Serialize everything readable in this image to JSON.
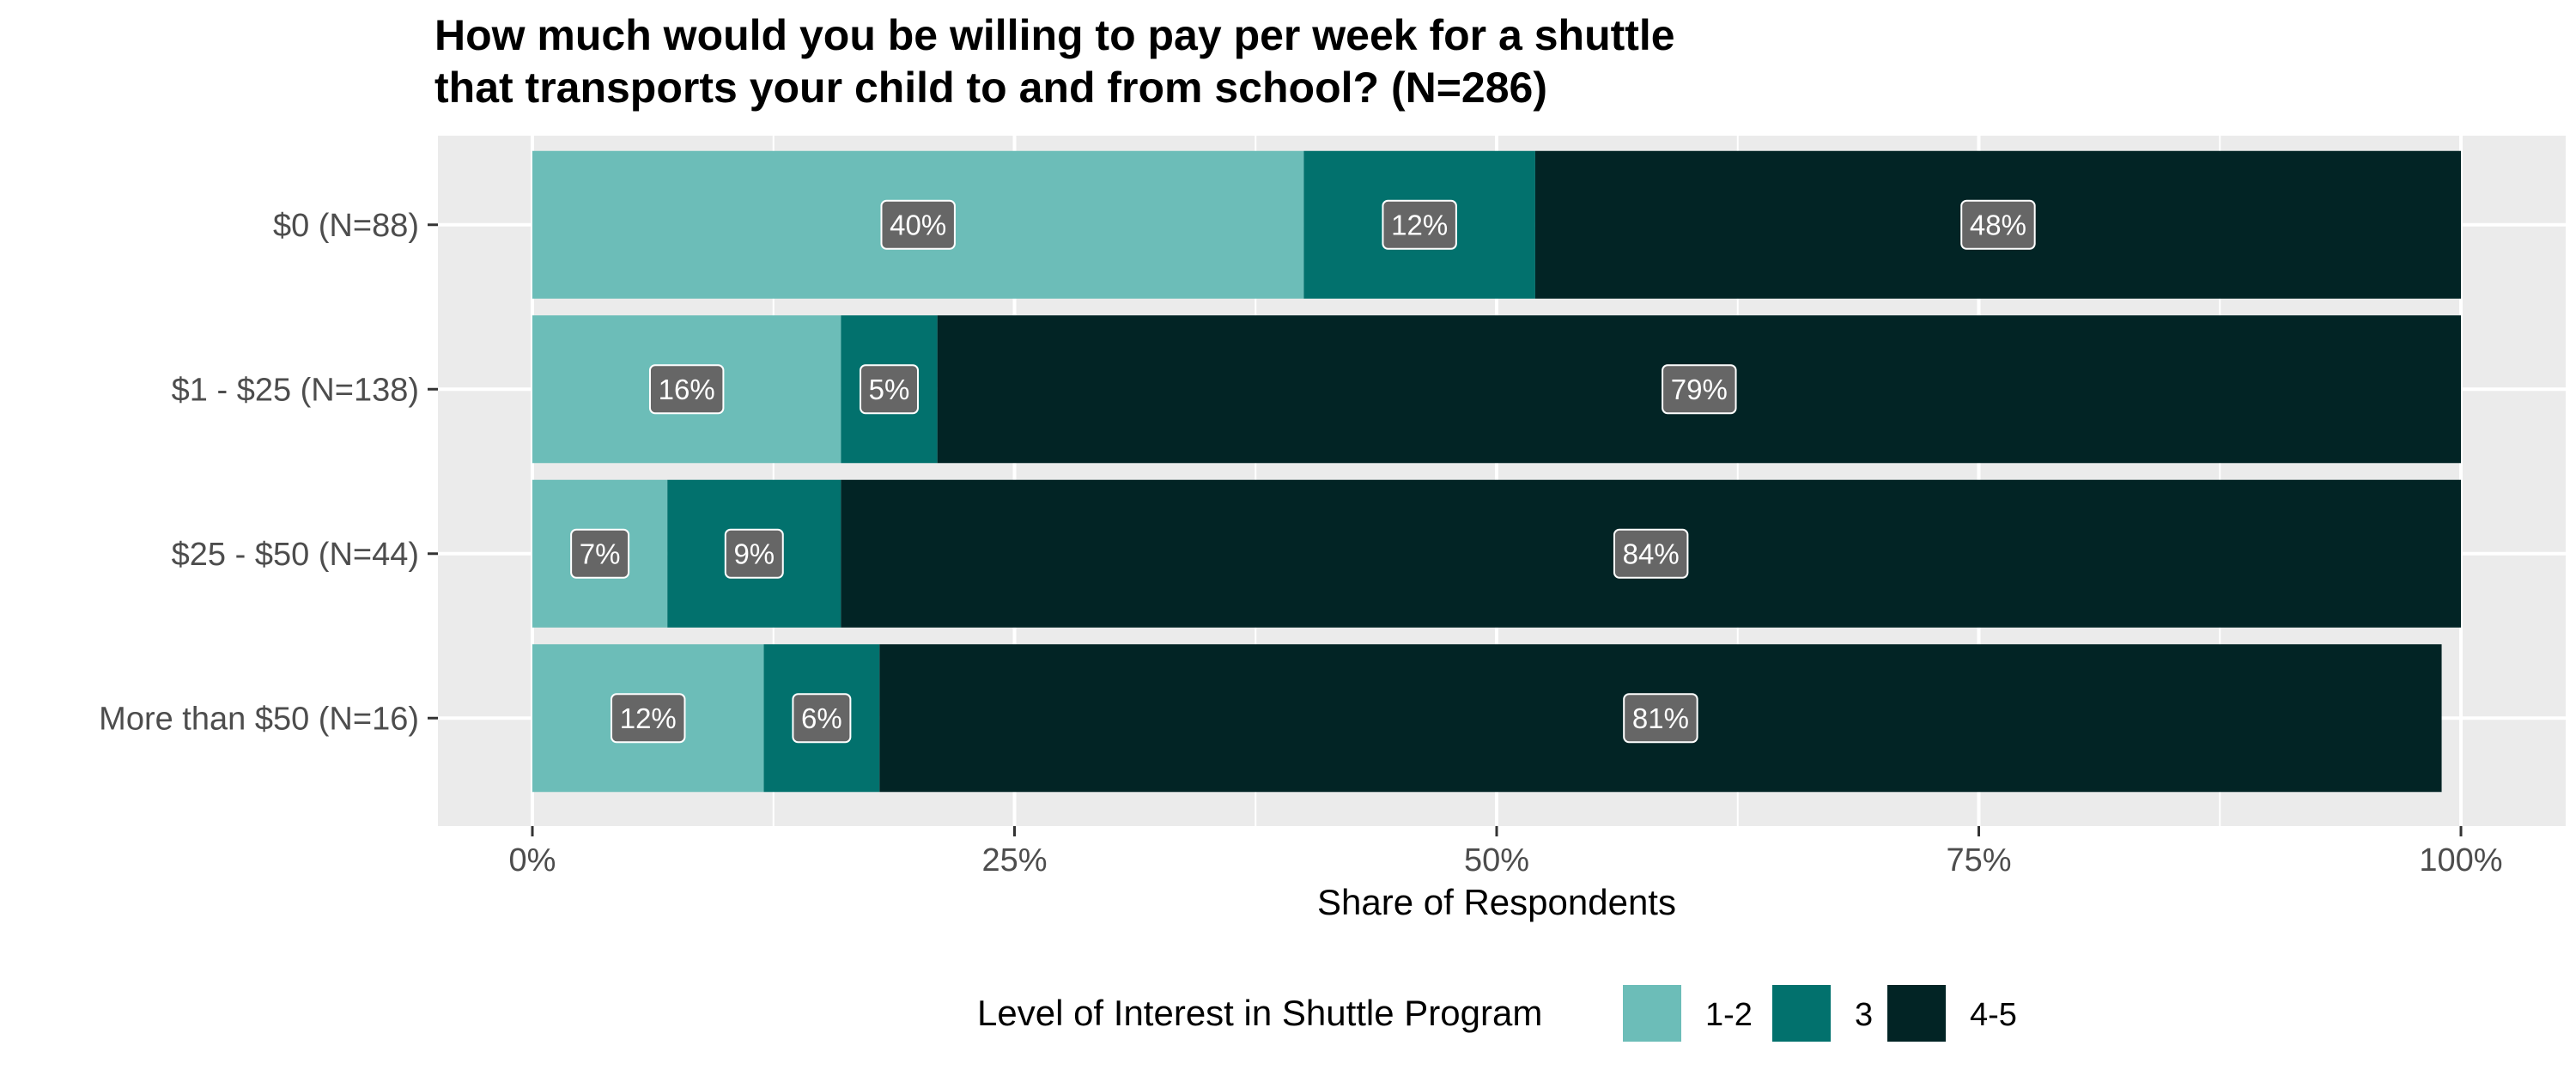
{
  "chart_data": {
    "type": "bar",
    "orientation": "horizontal",
    "stacked": true,
    "title": "How much would you be willing to pay per week for a shuttle\nthat transports your child to and from school? (N=286)",
    "xlabel": "Share of Respondents",
    "ylabel": "",
    "xlim": [
      0,
      100
    ],
    "x_ticks": [
      "0%",
      "25%",
      "50%",
      "75%",
      "100%"
    ],
    "x_tick_values": [
      0,
      25,
      50,
      75,
      100
    ],
    "grid": true,
    "categories": [
      "$0 (N=88)",
      "$1 - $25 (N=138)",
      "$25 - $50 (N=44)",
      "More than $50 (N=16)"
    ],
    "series": [
      {
        "name": "1-2",
        "color": "#6cbdb8",
        "values": [
          40,
          16,
          7,
          12
        ],
        "labels": [
          "40%",
          "16%",
          "7%",
          "12%"
        ]
      },
      {
        "name": "3",
        "color": "#02716d",
        "values": [
          12,
          5,
          9,
          6
        ],
        "labels": [
          "12%",
          "5%",
          "9%",
          "6%"
        ]
      },
      {
        "name": "4-5",
        "color": "#022425",
        "values": [
          48,
          79,
          84,
          81
        ],
        "labels": [
          "48%",
          "79%",
          "84%",
          "81%"
        ]
      }
    ],
    "legend": {
      "title": "Level of Interest in Shuttle Program",
      "position": "bottom"
    },
    "colors": {
      "panel_background": "#ebebeb",
      "gridline": "#ffffff",
      "label_box": "#666666"
    }
  }
}
